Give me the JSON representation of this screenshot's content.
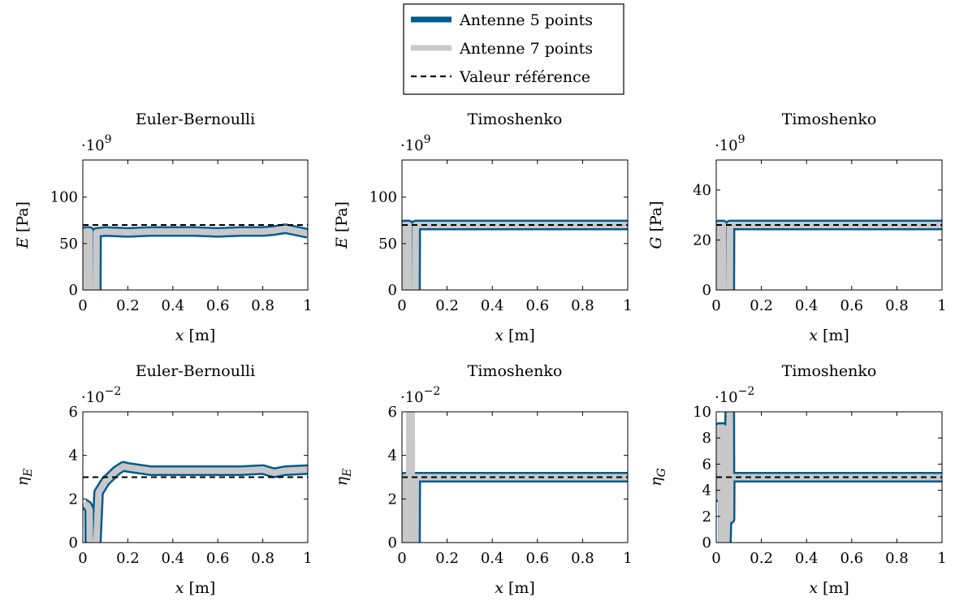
{
  "legend": {
    "entries": [
      {
        "label": "Antenne 5 points",
        "color": "#005b8f",
        "style": "thick-solid"
      },
      {
        "label": "Antenne 7 points",
        "color": "#c8c8c8",
        "style": "thick-solid"
      },
      {
        "label": "Valeur référence",
        "color": "#000000",
        "style": "dashed"
      }
    ]
  },
  "chart_data": [
    {
      "type": "line",
      "title": "Euler-Bernoulli",
      "ylabel": "E [Pa]",
      "xlabel": "x [m]",
      "y_multiplier": "·10^9",
      "xlim": [
        0,
        1
      ],
      "ylim": [
        0,
        140
      ],
      "xticks": [
        0,
        0.2,
        0.4,
        0.6,
        0.8,
        1
      ],
      "yticks": [
        0,
        50,
        100
      ],
      "reference": 70,
      "series": [
        {
          "name": "Antenne 5 points",
          "x": [
            0.01,
            0.011,
            0.03,
            0.031,
            0.045,
            0.06,
            0.061,
            0.1,
            0.2,
            0.3,
            0.4,
            0.5,
            0.6,
            0.7,
            0.8,
            0.85,
            0.9,
            1.0
          ],
          "y": [
            0,
            63,
            63,
            0,
            0,
            0,
            62,
            63,
            62,
            63,
            63,
            63,
            62,
            63,
            63,
            64,
            66,
            61
          ]
        },
        {
          "name": "Antenne 7 points",
          "x": [
            0.01,
            0.011,
            0.03,
            0.031,
            0.045,
            0.06,
            0.061,
            0.1,
            0.2,
            0.3,
            0.4,
            0.5,
            0.6,
            0.7,
            0.8,
            0.85,
            0.9,
            1.0
          ],
          "y": [
            0,
            63,
            63,
            0,
            0,
            0,
            62,
            63,
            62,
            63,
            63,
            63,
            62,
            63,
            63,
            64,
            66,
            61
          ]
        }
      ]
    },
    {
      "type": "line",
      "title": "Timoshenko",
      "ylabel": "E [Pa]",
      "xlabel": "x [m]",
      "y_multiplier": "·10^9",
      "xlim": [
        0,
        1
      ],
      "ylim": [
        0,
        140
      ],
      "xticks": [
        0,
        0.2,
        0.4,
        0.6,
        0.8,
        1
      ],
      "yticks": [
        0,
        50,
        100
      ],
      "reference": 70,
      "series": [
        {
          "name": "Antenne 5 points",
          "x": [
            0.01,
            0.011,
            0.03,
            0.031,
            0.045,
            0.06,
            0.061,
            1.0
          ],
          "y": [
            0,
            70,
            70,
            0,
            0,
            0,
            70,
            70
          ]
        },
        {
          "name": "Antenne 7 points",
          "x": [
            0.01,
            0.011,
            0.03,
            0.031,
            0.045,
            0.06,
            0.061,
            1.0
          ],
          "y": [
            0,
            70,
            70,
            0,
            0,
            0,
            70,
            70
          ]
        }
      ]
    },
    {
      "type": "line",
      "title": "Timoshenko",
      "ylabel": "G [Pa]",
      "xlabel": "x [m]",
      "y_multiplier": "·10^9",
      "xlim": [
        0,
        1
      ],
      "ylim": [
        0,
        52
      ],
      "xticks": [
        0,
        0.2,
        0.4,
        0.6,
        0.8,
        1
      ],
      "yticks": [
        0,
        20,
        40
      ],
      "reference": 26,
      "series": [
        {
          "name": "Antenne 5 points",
          "x": [
            0.01,
            0.011,
            0.03,
            0.031,
            0.045,
            0.06,
            0.061,
            1.0
          ],
          "y": [
            0,
            26,
            26,
            0,
            0,
            0,
            26,
            26
          ]
        },
        {
          "name": "Antenne 7 points",
          "x": [
            0.01,
            0.011,
            0.03,
            0.031,
            0.045,
            0.06,
            0.061,
            1.0
          ],
          "y": [
            0,
            26,
            26,
            0,
            0,
            0,
            26,
            26
          ]
        }
      ]
    },
    {
      "type": "line",
      "title": "Euler-Bernoulli",
      "ylabel": "η_E",
      "xlabel": "x [m]",
      "y_multiplier": "·10^−2",
      "xlim": [
        0,
        1
      ],
      "ylim": [
        0,
        6
      ],
      "xticks": [
        0,
        0.2,
        0.4,
        0.6,
        0.8,
        1
      ],
      "yticks": [
        0,
        2,
        4,
        6
      ],
      "reference": 3,
      "series": [
        {
          "name": "Antenne 5 points",
          "x": [
            0.005,
            0.02,
            0.03,
            0.031,
            0.045,
            0.06,
            0.07,
            0.1,
            0.15,
            0.18,
            0.2,
            0.3,
            0.4,
            0.5,
            0.6,
            0.7,
            0.8,
            0.85,
            0.9,
            1.0
          ],
          "y": [
            1.8,
            1.7,
            1.5,
            0,
            0,
            0,
            2.3,
            2.8,
            3.3,
            3.5,
            3.45,
            3.3,
            3.3,
            3.3,
            3.3,
            3.3,
            3.35,
            3.2,
            3.3,
            3.35
          ]
        },
        {
          "name": "Antenne 7 points",
          "x": [
            0.005,
            0.02,
            0.03,
            0.031,
            0.045,
            0.06,
            0.07,
            0.1,
            0.15,
            0.18,
            0.2,
            0.3,
            0.4,
            0.5,
            0.6,
            0.7,
            0.8,
            0.85,
            0.9,
            1.0
          ],
          "y": [
            1.8,
            1.7,
            1.5,
            0,
            0,
            0,
            2.3,
            2.8,
            3.3,
            3.5,
            3.45,
            3.3,
            3.3,
            3.3,
            3.3,
            3.3,
            3.35,
            3.2,
            3.3,
            3.35
          ]
        }
      ]
    },
    {
      "type": "line",
      "title": "Timoshenko",
      "ylabel": "η_E",
      "xlabel": "x [m]",
      "y_multiplier": "·10^−2",
      "xlim": [
        0,
        1
      ],
      "ylim": [
        0,
        6
      ],
      "xticks": [
        0,
        0.2,
        0.4,
        0.6,
        0.8,
        1
      ],
      "yticks": [
        0,
        2,
        4,
        6
      ],
      "reference": 3,
      "series": [
        {
          "name": "Antenne 5 points",
          "x": [
            0.01,
            0.011,
            0.03,
            0.031,
            0.045,
            0.06,
            0.061,
            1.0
          ],
          "y": [
            0,
            3,
            3,
            0,
            0,
            0,
            3,
            3
          ]
        },
        {
          "name": "Antenne 7 points",
          "x": [
            0.01,
            0.011,
            0.03,
            0.031,
            0.045,
            0.046,
            0.06,
            0.061,
            1.0
          ],
          "y": [
            0,
            3,
            3,
            6,
            6,
            0,
            0,
            3,
            3
          ]
        }
      ]
    },
    {
      "type": "line",
      "title": "Timoshenko",
      "ylabel": "η_G",
      "xlabel": "x [m]",
      "y_multiplier": "·10^−2",
      "xlim": [
        0,
        1
      ],
      "ylim": [
        0,
        10
      ],
      "xticks": [
        0,
        0.2,
        0.4,
        0.6,
        0.8,
        1
      ],
      "yticks": [
        0,
        2,
        4,
        6,
        8,
        10
      ],
      "reference": 5,
      "series": [
        {
          "name": "Antenne 5 points",
          "x": [
            0.005,
            0.006,
            0.012,
            0.013,
            0.03,
            0.031,
            0.045,
            0.06,
            0.061,
            0.062,
            1.0
          ],
          "y": [
            5,
            3.5,
            3.5,
            8.8,
            8.8,
            0,
            0,
            10,
            1.8,
            5,
            5
          ]
        },
        {
          "name": "Antenne 7 points",
          "x": [
            0.005,
            0.02,
            0.021,
            0.035,
            0.036,
            0.05,
            0.051,
            1.0
          ],
          "y": [
            5,
            5,
            0,
            0,
            5,
            5,
            5,
            5
          ]
        }
      ]
    }
  ]
}
